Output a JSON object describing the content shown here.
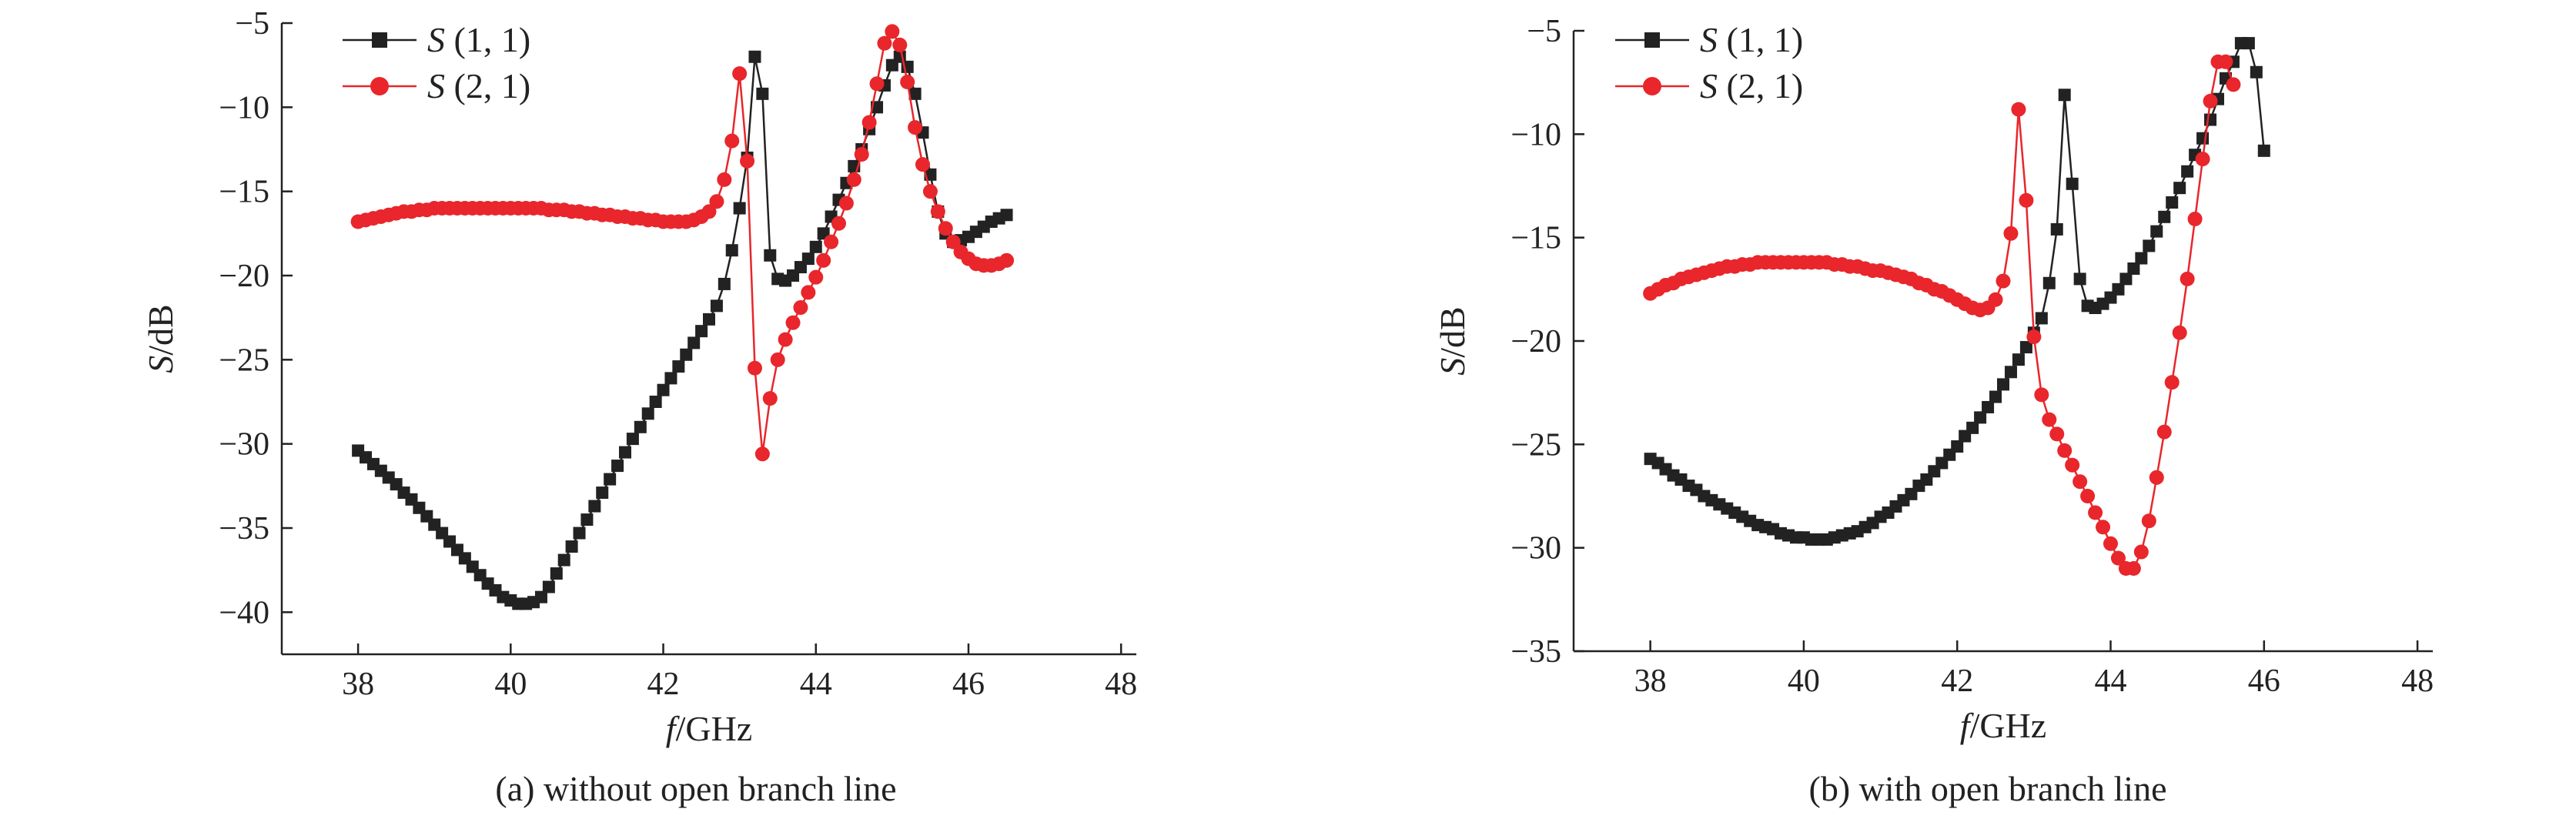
{
  "chart_data": [
    {
      "type": "line",
      "caption": "(a) without open branch line",
      "xlabel": "f/GHz",
      "ylabel": "S/dB",
      "xlim": [
        37,
        48.2
      ],
      "ylim": [
        -42.5,
        -5
      ],
      "xticks": [
        38,
        40,
        42,
        44,
        46,
        48
      ],
      "yticks": [
        -40,
        -35,
        -30,
        -25,
        -20,
        -15,
        -10,
        -5
      ],
      "x_start": 38,
      "x_step": 0.1,
      "series": [
        {
          "name": "S (1, 1)",
          "color": "#222222",
          "marker": "square",
          "values": [
            -30.4,
            -30.8,
            -31.2,
            -31.6,
            -32.0,
            -32.4,
            -32.9,
            -33.3,
            -33.8,
            -34.3,
            -34.8,
            -35.3,
            -35.8,
            -36.3,
            -36.8,
            -37.3,
            -37.8,
            -38.3,
            -38.7,
            -39.1,
            -39.3,
            -39.5,
            -39.5,
            -39.4,
            -39.1,
            -38.5,
            -37.7,
            -36.9,
            -36.1,
            -35.3,
            -34.5,
            -33.7,
            -32.9,
            -32.1,
            -31.3,
            -30.5,
            -29.7,
            -29.0,
            -28.2,
            -27.5,
            -26.8,
            -26.1,
            -25.4,
            -24.7,
            -24.0,
            -23.3,
            -22.6,
            -21.8,
            -20.5,
            -18.5,
            -16.0,
            -13.0,
            -7.0,
            -9.2,
            -18.8,
            -20.2,
            -20.3,
            -20.0,
            -19.5,
            -19.0,
            -18.3,
            -17.5,
            -16.5,
            -15.5,
            -14.5,
            -13.5,
            -12.5,
            -11.3,
            -10.0,
            -8.7,
            -7.5,
            -7.0,
            -7.6,
            -9.2,
            -11.5,
            -14.0,
            -16.2,
            -17.5,
            -18.0,
            -17.9,
            -17.7,
            -17.4,
            -17.1,
            -16.8,
            -16.6,
            -16.4
          ]
        },
        {
          "name": "S (2, 1)",
          "color": "#e8262b",
          "marker": "circle",
          "values": [
            -16.8,
            -16.7,
            -16.6,
            -16.5,
            -16.4,
            -16.3,
            -16.2,
            -16.2,
            -16.1,
            -16.1,
            -16.0,
            -16.0,
            -16.0,
            -16.0,
            -16.0,
            -16.0,
            -16.0,
            -16.0,
            -16.0,
            -16.0,
            -16.0,
            -16.0,
            -16.0,
            -16.0,
            -16.0,
            -16.1,
            -16.1,
            -16.1,
            -16.2,
            -16.2,
            -16.3,
            -16.3,
            -16.4,
            -16.4,
            -16.5,
            -16.5,
            -16.6,
            -16.6,
            -16.7,
            -16.7,
            -16.8,
            -16.8,
            -16.8,
            -16.8,
            -16.7,
            -16.5,
            -16.2,
            -15.6,
            -14.3,
            -12.0,
            -8.0,
            -13.2,
            -25.5,
            -30.6,
            -27.3,
            -25.0,
            -23.8,
            -22.8,
            -21.9,
            -21.0,
            -20.1,
            -19.1,
            -18.0,
            -16.9,
            -15.7,
            -14.3,
            -12.8,
            -10.9,
            -8.6,
            -6.2,
            -5.5,
            -6.3,
            -8.5,
            -11.2,
            -13.4,
            -15.0,
            -16.2,
            -17.2,
            -18.0,
            -18.6,
            -19.0,
            -19.3,
            -19.4,
            -19.4,
            -19.3,
            -19.1
          ]
        }
      ]
    },
    {
      "type": "line",
      "caption": "(b) with open branch line",
      "xlabel": "f/GHz",
      "ylabel": "S/dB",
      "xlim": [
        37,
        48.2
      ],
      "ylim": [
        -35,
        -5
      ],
      "xticks": [
        38,
        40,
        42,
        44,
        46,
        48
      ],
      "yticks": [
        -35,
        -30,
        -25,
        -20,
        -15,
        -10,
        -5
      ],
      "x_start": 38,
      "x_step": 0.1,
      "series": [
        {
          "name": "S (1, 1)",
          "color": "#222222",
          "marker": "square",
          "values": [
            -25.7,
            -25.9,
            -26.2,
            -26.5,
            -26.7,
            -27.0,
            -27.2,
            -27.5,
            -27.7,
            -27.9,
            -28.1,
            -28.3,
            -28.5,
            -28.7,
            -28.9,
            -29.0,
            -29.1,
            -29.3,
            -29.4,
            -29.5,
            -29.5,
            -29.6,
            -29.6,
            -29.6,
            -29.5,
            -29.4,
            -29.3,
            -29.2,
            -29.0,
            -28.8,
            -28.5,
            -28.3,
            -28.0,
            -27.7,
            -27.4,
            -27.0,
            -26.7,
            -26.3,
            -25.9,
            -25.5,
            -25.1,
            -24.6,
            -24.2,
            -23.7,
            -23.2,
            -22.7,
            -22.1,
            -21.5,
            -20.9,
            -20.3,
            -19.6,
            -18.9,
            -17.2,
            -14.6,
            -8.1,
            -12.4,
            -17.0,
            -18.3,
            -18.4,
            -18.2,
            -17.9,
            -17.5,
            -17.0,
            -16.5,
            -16.0,
            -15.4,
            -14.7,
            -14.0,
            -13.3,
            -12.6,
            -11.8,
            -11.0,
            -10.2,
            -9.3,
            -8.3,
            -7.3,
            -6.5,
            -5.6,
            -5.6,
            -7.0,
            -10.8
          ]
        },
        {
          "name": "S (2, 1)",
          "color": "#e8262b",
          "marker": "circle",
          "values": [
            -17.7,
            -17.5,
            -17.3,
            -17.2,
            -17.0,
            -16.9,
            -16.8,
            -16.7,
            -16.6,
            -16.5,
            -16.4,
            -16.4,
            -16.3,
            -16.3,
            -16.2,
            -16.2,
            -16.2,
            -16.2,
            -16.2,
            -16.2,
            -16.2,
            -16.2,
            -16.2,
            -16.2,
            -16.3,
            -16.3,
            -16.4,
            -16.4,
            -16.5,
            -16.6,
            -16.6,
            -16.7,
            -16.8,
            -16.9,
            -17.0,
            -17.2,
            -17.3,
            -17.5,
            -17.6,
            -17.8,
            -18.0,
            -18.2,
            -18.4,
            -18.5,
            -18.4,
            -18.0,
            -17.1,
            -14.8,
            -8.8,
            -13.2,
            -19.8,
            -22.6,
            -23.8,
            -24.5,
            -25.3,
            -26.0,
            -26.8,
            -27.5,
            -28.3,
            -29.0,
            -29.8,
            -30.5,
            -31.0,
            -31.0,
            -30.2,
            -28.7,
            -26.6,
            -24.4,
            -22.0,
            -19.6,
            -17.0,
            -14.1,
            -11.2,
            -8.4,
            -6.5,
            -6.5,
            -7.6
          ]
        }
      ]
    }
  ]
}
